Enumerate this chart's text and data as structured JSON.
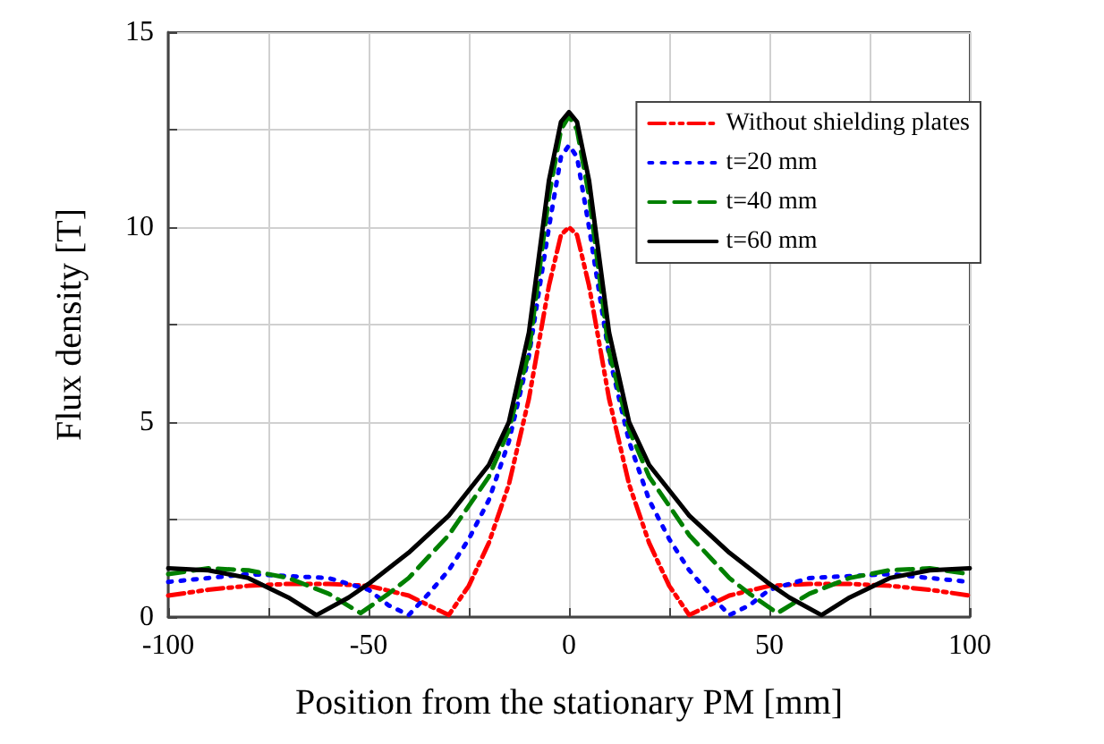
{
  "chart_data": {
    "type": "line",
    "xlabel": "Position from the stationary PM [mm]",
    "ylabel": "Flux density [T]",
    "xlim": [
      -100,
      100
    ],
    "ylim": [
      0,
      15
    ],
    "xticks": [
      -100,
      {
        "value": -75,
        "label": null
      },
      -50,
      {
        "value": -25,
        "label": null
      },
      0,
      {
        "value": 25,
        "label": null
      },
      50,
      {
        "value": 75,
        "label": null
      },
      100
    ],
    "yticks": [
      0,
      {
        "value": 2.5,
        "label": null
      },
      5,
      {
        "value": 7.5,
        "label": null
      },
      10,
      {
        "value": 12.5,
        "label": null
      },
      15
    ],
    "grid": true,
    "legend": "top right",
    "marker": "none",
    "series": [
      {
        "name": "Without shielding plates",
        "color": "#ff0000",
        "line_style": "dashdot",
        "x": [
          -100,
          -90,
          -80,
          -70,
          -60,
          -50,
          -40,
          -35,
          -30,
          -25,
          -20,
          -15,
          -10,
          -5,
          -2,
          0,
          2,
          5,
          10,
          15,
          20,
          25,
          30,
          35,
          40,
          50,
          60,
          70,
          80,
          90,
          100
        ],
        "values": [
          0.55,
          0.7,
          0.8,
          0.85,
          0.85,
          0.8,
          0.55,
          0.3,
          0.05,
          0.8,
          1.9,
          3.4,
          5.6,
          8.5,
          9.8,
          10,
          9.8,
          8.5,
          5.6,
          3.4,
          1.9,
          0.8,
          0.05,
          0.3,
          0.55,
          0.8,
          0.85,
          0.85,
          0.8,
          0.7,
          0.55
        ]
      },
      {
        "name": "t=20 mm",
        "color": "#0000ff",
        "line_style": "dotted",
        "x": [
          -100,
          -90,
          -80,
          -70,
          -60,
          -50,
          -45,
          -40,
          -35,
          -30,
          -25,
          -20,
          -15,
          -10,
          -5,
          -2,
          0,
          2,
          5,
          10,
          15,
          20,
          25,
          30,
          35,
          40,
          45,
          50,
          60,
          70,
          80,
          90,
          100
        ],
        "values": [
          0.9,
          1.0,
          1.1,
          1.05,
          1.0,
          0.7,
          0.3,
          0.05,
          0.6,
          1.2,
          2.0,
          3.0,
          4.5,
          6.7,
          10.0,
          11.8,
          12.1,
          11.8,
          10.0,
          6.7,
          4.5,
          3.0,
          2.0,
          1.2,
          0.6,
          0.05,
          0.3,
          0.7,
          1.0,
          1.05,
          1.1,
          1.0,
          0.9
        ]
      },
      {
        "name": "t=40 mm",
        "color": "#008000",
        "line_style": "dashed",
        "x": [
          -100,
          -90,
          -80,
          -70,
          -60,
          -52,
          -45,
          -40,
          -30,
          -20,
          -15,
          -10,
          -5,
          -2,
          0,
          2,
          5,
          10,
          15,
          20,
          30,
          40,
          45,
          52,
          60,
          70,
          80,
          90,
          100
        ],
        "values": [
          1.1,
          1.25,
          1.2,
          1.0,
          0.6,
          0.1,
          0.6,
          1.0,
          2.1,
          3.6,
          4.8,
          6.8,
          10.8,
          12.5,
          12.85,
          12.5,
          10.8,
          6.8,
          4.8,
          3.6,
          2.1,
          1.0,
          0.6,
          0.1,
          0.6,
          1.0,
          1.2,
          1.25,
          1.1
        ]
      },
      {
        "name": "t=60 mm",
        "color": "#000000",
        "line_style": "solid",
        "x": [
          -100,
          -90,
          -80,
          -70,
          -63,
          -55,
          -50,
          -40,
          -30,
          -20,
          -15,
          -10,
          -5,
          -2,
          0,
          2,
          5,
          10,
          15,
          20,
          30,
          40,
          50,
          55,
          63,
          70,
          80,
          90,
          100
        ],
        "values": [
          1.25,
          1.2,
          1.0,
          0.5,
          0.05,
          0.5,
          0.85,
          1.65,
          2.6,
          3.9,
          5.0,
          7.3,
          11.2,
          12.7,
          12.95,
          12.7,
          11.2,
          7.3,
          5.0,
          3.9,
          2.6,
          1.65,
          0.85,
          0.5,
          0.05,
          0.5,
          1.0,
          1.2,
          1.25
        ]
      }
    ]
  }
}
